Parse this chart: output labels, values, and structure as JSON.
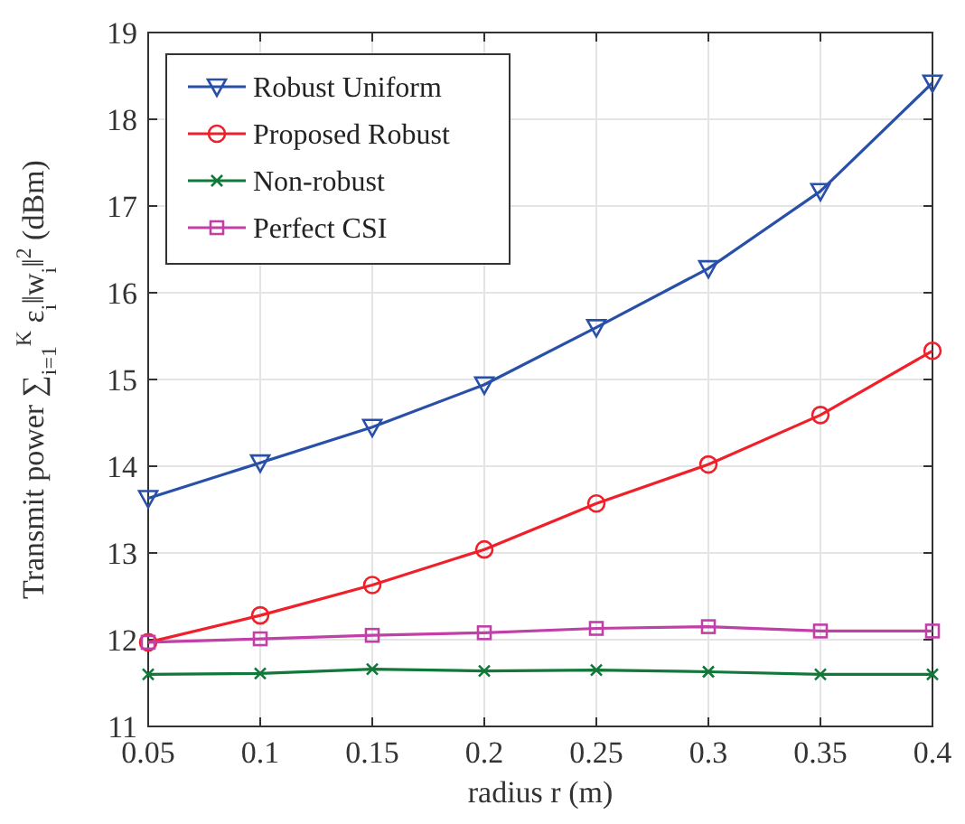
{
  "chart_data": {
    "type": "line",
    "xlabel": "radius r (m)",
    "ylabel": "Transmit power ∑$_{i=1}$$^{K}$ ε$_{i}$‖w$_{i}$‖$^{2}$ (dBm)",
    "x": [
      0.05,
      0.1,
      0.15,
      0.2,
      0.25,
      0.3,
      0.35,
      0.4
    ],
    "series": [
      {
        "name": "Robust Uniform",
        "color": "#2850a8",
        "marker": "triangle",
        "values": [
          13.63,
          14.04,
          14.45,
          14.94,
          15.6,
          16.28,
          17.17,
          18.42
        ]
      },
      {
        "name": "Proposed Robust",
        "color": "#f0202a",
        "marker": "circle",
        "values": [
          11.97,
          12.28,
          12.63,
          13.04,
          13.57,
          14.02,
          14.59,
          15.33
        ]
      },
      {
        "name": "Non-robust",
        "color": "#107838",
        "marker": "cross",
        "values": [
          11.6,
          11.61,
          11.66,
          11.64,
          11.65,
          11.63,
          11.6,
          11.6
        ]
      },
      {
        "name": "Perfect CSI",
        "color": "#c040a8",
        "marker": "square",
        "values": [
          11.97,
          12.01,
          12.05,
          12.08,
          12.13,
          12.15,
          12.1,
          12.1
        ]
      }
    ],
    "xlim": [
      0.05,
      0.4
    ],
    "xticks": [
      0.05,
      0.1,
      0.15,
      0.2,
      0.25,
      0.3,
      0.35,
      0.4
    ],
    "ylim": [
      11,
      19
    ],
    "yticks": [
      11,
      12,
      13,
      14,
      15,
      16,
      17,
      18,
      19
    ],
    "grid": true,
    "legend": "top left",
    "line_style": "solid"
  }
}
